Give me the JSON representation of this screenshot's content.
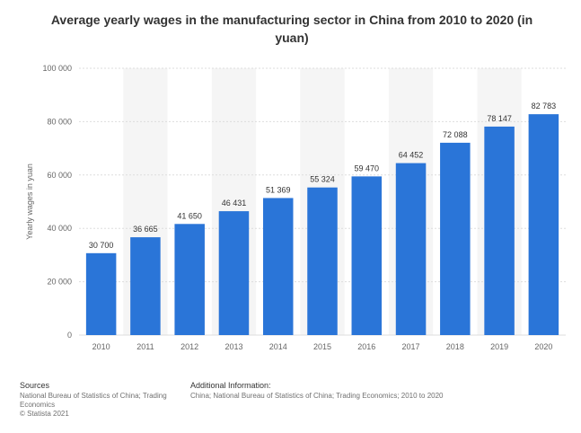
{
  "chart_data": {
    "type": "bar",
    "title": "Average yearly wages in the manufacturing sector in China from 2010 to 2020 (in yuan)",
    "ylabel": "Yearly wages in yuan",
    "xlabel": "",
    "ylim": [
      0,
      100000
    ],
    "yticks": [
      "0",
      "20 000",
      "40 000",
      "60 000",
      "80 000",
      "100 000"
    ],
    "ytick_values": [
      0,
      20000,
      40000,
      60000,
      80000,
      100000
    ],
    "categories": [
      "2010",
      "2011",
      "2012",
      "2013",
      "2014",
      "2015",
      "2016",
      "2017",
      "2018",
      "2019",
      "2020"
    ],
    "values": [
      30700,
      36665,
      41650,
      46431,
      51369,
      55324,
      59470,
      64452,
      72088,
      78147,
      82783
    ],
    "value_labels": [
      "30 700",
      "36 665",
      "41 650",
      "46 431",
      "51 369",
      "55 324",
      "59 470",
      "64 452",
      "72 088",
      "78 147",
      "82 783"
    ],
    "bar_color": "#2a75d8",
    "grid": true,
    "legend": "none"
  },
  "footer": {
    "sources_heading": "Sources",
    "sources_line1": "National Bureau of Statistics of China; Trading",
    "sources_line2": "Economics",
    "copyright": "© Statista 2021",
    "additional_heading": "Additional Information:",
    "additional_text": "China; National Bureau of Statistics of China; Trading Economics; 2010 to 2020"
  }
}
